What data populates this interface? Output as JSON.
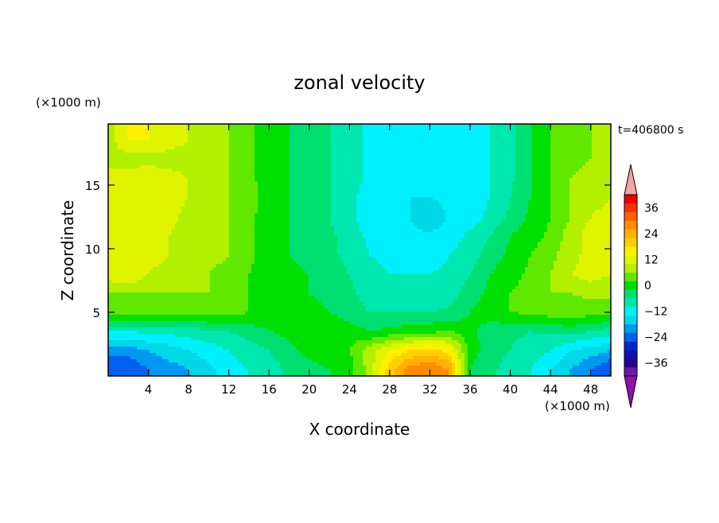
{
  "chart_data": {
    "type": "heatmap",
    "title": "zonal velocity",
    "xlabel": "X coordinate",
    "ylabel": "Z coordinate",
    "x_unit": "(×1000 m)",
    "z_unit": "(×1000 m)",
    "time_label": "t=406800 s",
    "xlim": [
      0,
      50
    ],
    "zlim": [
      0,
      19.8
    ],
    "x_ticks": [
      4,
      8,
      12,
      16,
      20,
      24,
      28,
      32,
      36,
      40,
      44,
      48
    ],
    "z_ticks": [
      5,
      10,
      15
    ],
    "x_samples": [
      0,
      2,
      4,
      6,
      8,
      10,
      12,
      14,
      16,
      18,
      20,
      22,
      24,
      26,
      28,
      30,
      32,
      34,
      36,
      38,
      40,
      42,
      44,
      46,
      48,
      50
    ],
    "z_samples": [
      0.5,
      2,
      3.5,
      5,
      6.5,
      8,
      9.5,
      11,
      12.5,
      14,
      15.5,
      17,
      18.5,
      19.8
    ],
    "values": [
      [
        -26,
        -26,
        -22,
        -20,
        -18,
        -15,
        -12,
        -10,
        -8,
        -5,
        -3,
        -2,
        0,
        8,
        20,
        28,
        30,
        26,
        -2,
        -5,
        -8,
        -10,
        -14,
        -18,
        -22,
        -26
      ],
      [
        -20,
        -20,
        -18,
        -16,
        -14,
        -12,
        -10,
        -8,
        -6,
        -3,
        -1,
        0,
        2,
        8,
        14,
        18,
        20,
        16,
        0,
        -4,
        -6,
        -8,
        -10,
        -14,
        -16,
        -18
      ],
      [
        -10,
        -10,
        -9,
        -9,
        -8,
        -7,
        -6,
        -4,
        -2,
        -1,
        0,
        1,
        0,
        -2,
        -1,
        0,
        1,
        2,
        -1,
        -4,
        -5,
        -6,
        -5,
        -4,
        -6,
        -8
      ],
      [
        5,
        4,
        4,
        4,
        4,
        4,
        4,
        2,
        0,
        -1,
        -1,
        -2,
        -4,
        -6,
        -6,
        -6,
        -6,
        -5,
        -2,
        0,
        2,
        3,
        4,
        4,
        4,
        4
      ],
      [
        6,
        6,
        6,
        6,
        6,
        6,
        5,
        2,
        -1,
        -2,
        -2,
        -3,
        -5,
        -8,
        -9,
        -10,
        -10,
        -8,
        -4,
        -1,
        2,
        4,
        6,
        6,
        7,
        7
      ],
      [
        12,
        14,
        10,
        8,
        7,
        6,
        5,
        2,
        0,
        -1,
        -2,
        -4,
        -6,
        -8,
        -10,
        -10,
        -10,
        -9,
        -6,
        -2,
        0,
        3,
        6,
        10,
        12,
        10
      ],
      [
        10,
        12,
        12,
        10,
        8,
        7,
        6,
        3,
        0,
        -2,
        -3,
        -5,
        -7,
        -10,
        -12,
        -12,
        -12,
        -10,
        -8,
        -4,
        -1,
        2,
        5,
        8,
        12,
        12
      ],
      [
        12,
        12,
        12,
        10,
        8,
        7,
        6,
        3,
        0,
        -2,
        -3,
        -5,
        -8,
        -11,
        -13,
        -13,
        -13,
        -12,
        -9,
        -6,
        -2,
        0,
        3,
        8,
        12,
        14
      ],
      [
        12,
        12,
        12,
        12,
        8,
        7,
        6,
        3,
        0,
        -2,
        -4,
        -6,
        -9,
        -12,
        -13,
        -14,
        -18,
        -13,
        -12,
        -9,
        -5,
        -1,
        2,
        6,
        10,
        12
      ],
      [
        12,
        12,
        12,
        12,
        10,
        8,
        6,
        3,
        1,
        -2,
        -4,
        -6,
        -9,
        -12,
        -13,
        -14,
        -14,
        -13,
        -12,
        -10,
        -6,
        -2,
        2,
        6,
        8,
        10
      ],
      [
        12,
        12,
        14,
        12,
        10,
        8,
        6,
        3,
        0,
        -2,
        -4,
        -6,
        -8,
        -11,
        -13,
        -14,
        -14,
        -13,
        -12,
        -10,
        -7,
        -2,
        2,
        6,
        8,
        8
      ],
      [
        8,
        8,
        8,
        8,
        8,
        8,
        6,
        3,
        0,
        -2,
        -4,
        -6,
        -8,
        -11,
        -13,
        -14,
        -14,
        -13,
        -12,
        -10,
        -7,
        -2,
        2,
        4,
        6,
        6
      ],
      [
        8,
        14,
        14,
        12,
        10,
        8,
        6,
        3,
        0,
        -2,
        -4,
        -6,
        -8,
        -11,
        -13,
        -14,
        -14,
        -13,
        -12,
        -10,
        -7,
        -2,
        2,
        4,
        6,
        6
      ],
      [
        8,
        14,
        14,
        12,
        10,
        8,
        6,
        3,
        0,
        -2,
        -4,
        -6,
        -8,
        -11,
        -13,
        -14,
        -14,
        -13,
        -12,
        -10,
        -7,
        -2,
        2,
        4,
        6,
        6
      ]
    ],
    "colorbar": {
      "levels": [
        -42,
        -36,
        -30,
        -24,
        -18,
        -12,
        -6,
        0,
        6,
        12,
        18,
        24,
        30,
        36,
        42
      ],
      "tick_labels": [
        "36",
        "24",
        "12",
        "0",
        "−12",
        "−24",
        "−36"
      ],
      "colors": [
        "#6a1aa8",
        "#2a0090",
        "#1010b0",
        "#0028d0",
        "#0060f0",
        "#0098f0",
        "#00d8e8",
        "#00f0ff",
        "#00e8b0",
        "#00e070",
        "#00e000",
        "#60e800",
        "#b0f000",
        "#e0f400",
        "#fff000",
        "#ffd000",
        "#ffb000",
        "#ff8c00",
        "#ff6000",
        "#ff3000",
        "#f00000"
      ],
      "over_color": "#f4a4a0",
      "under_color": "#9010a8"
    }
  }
}
